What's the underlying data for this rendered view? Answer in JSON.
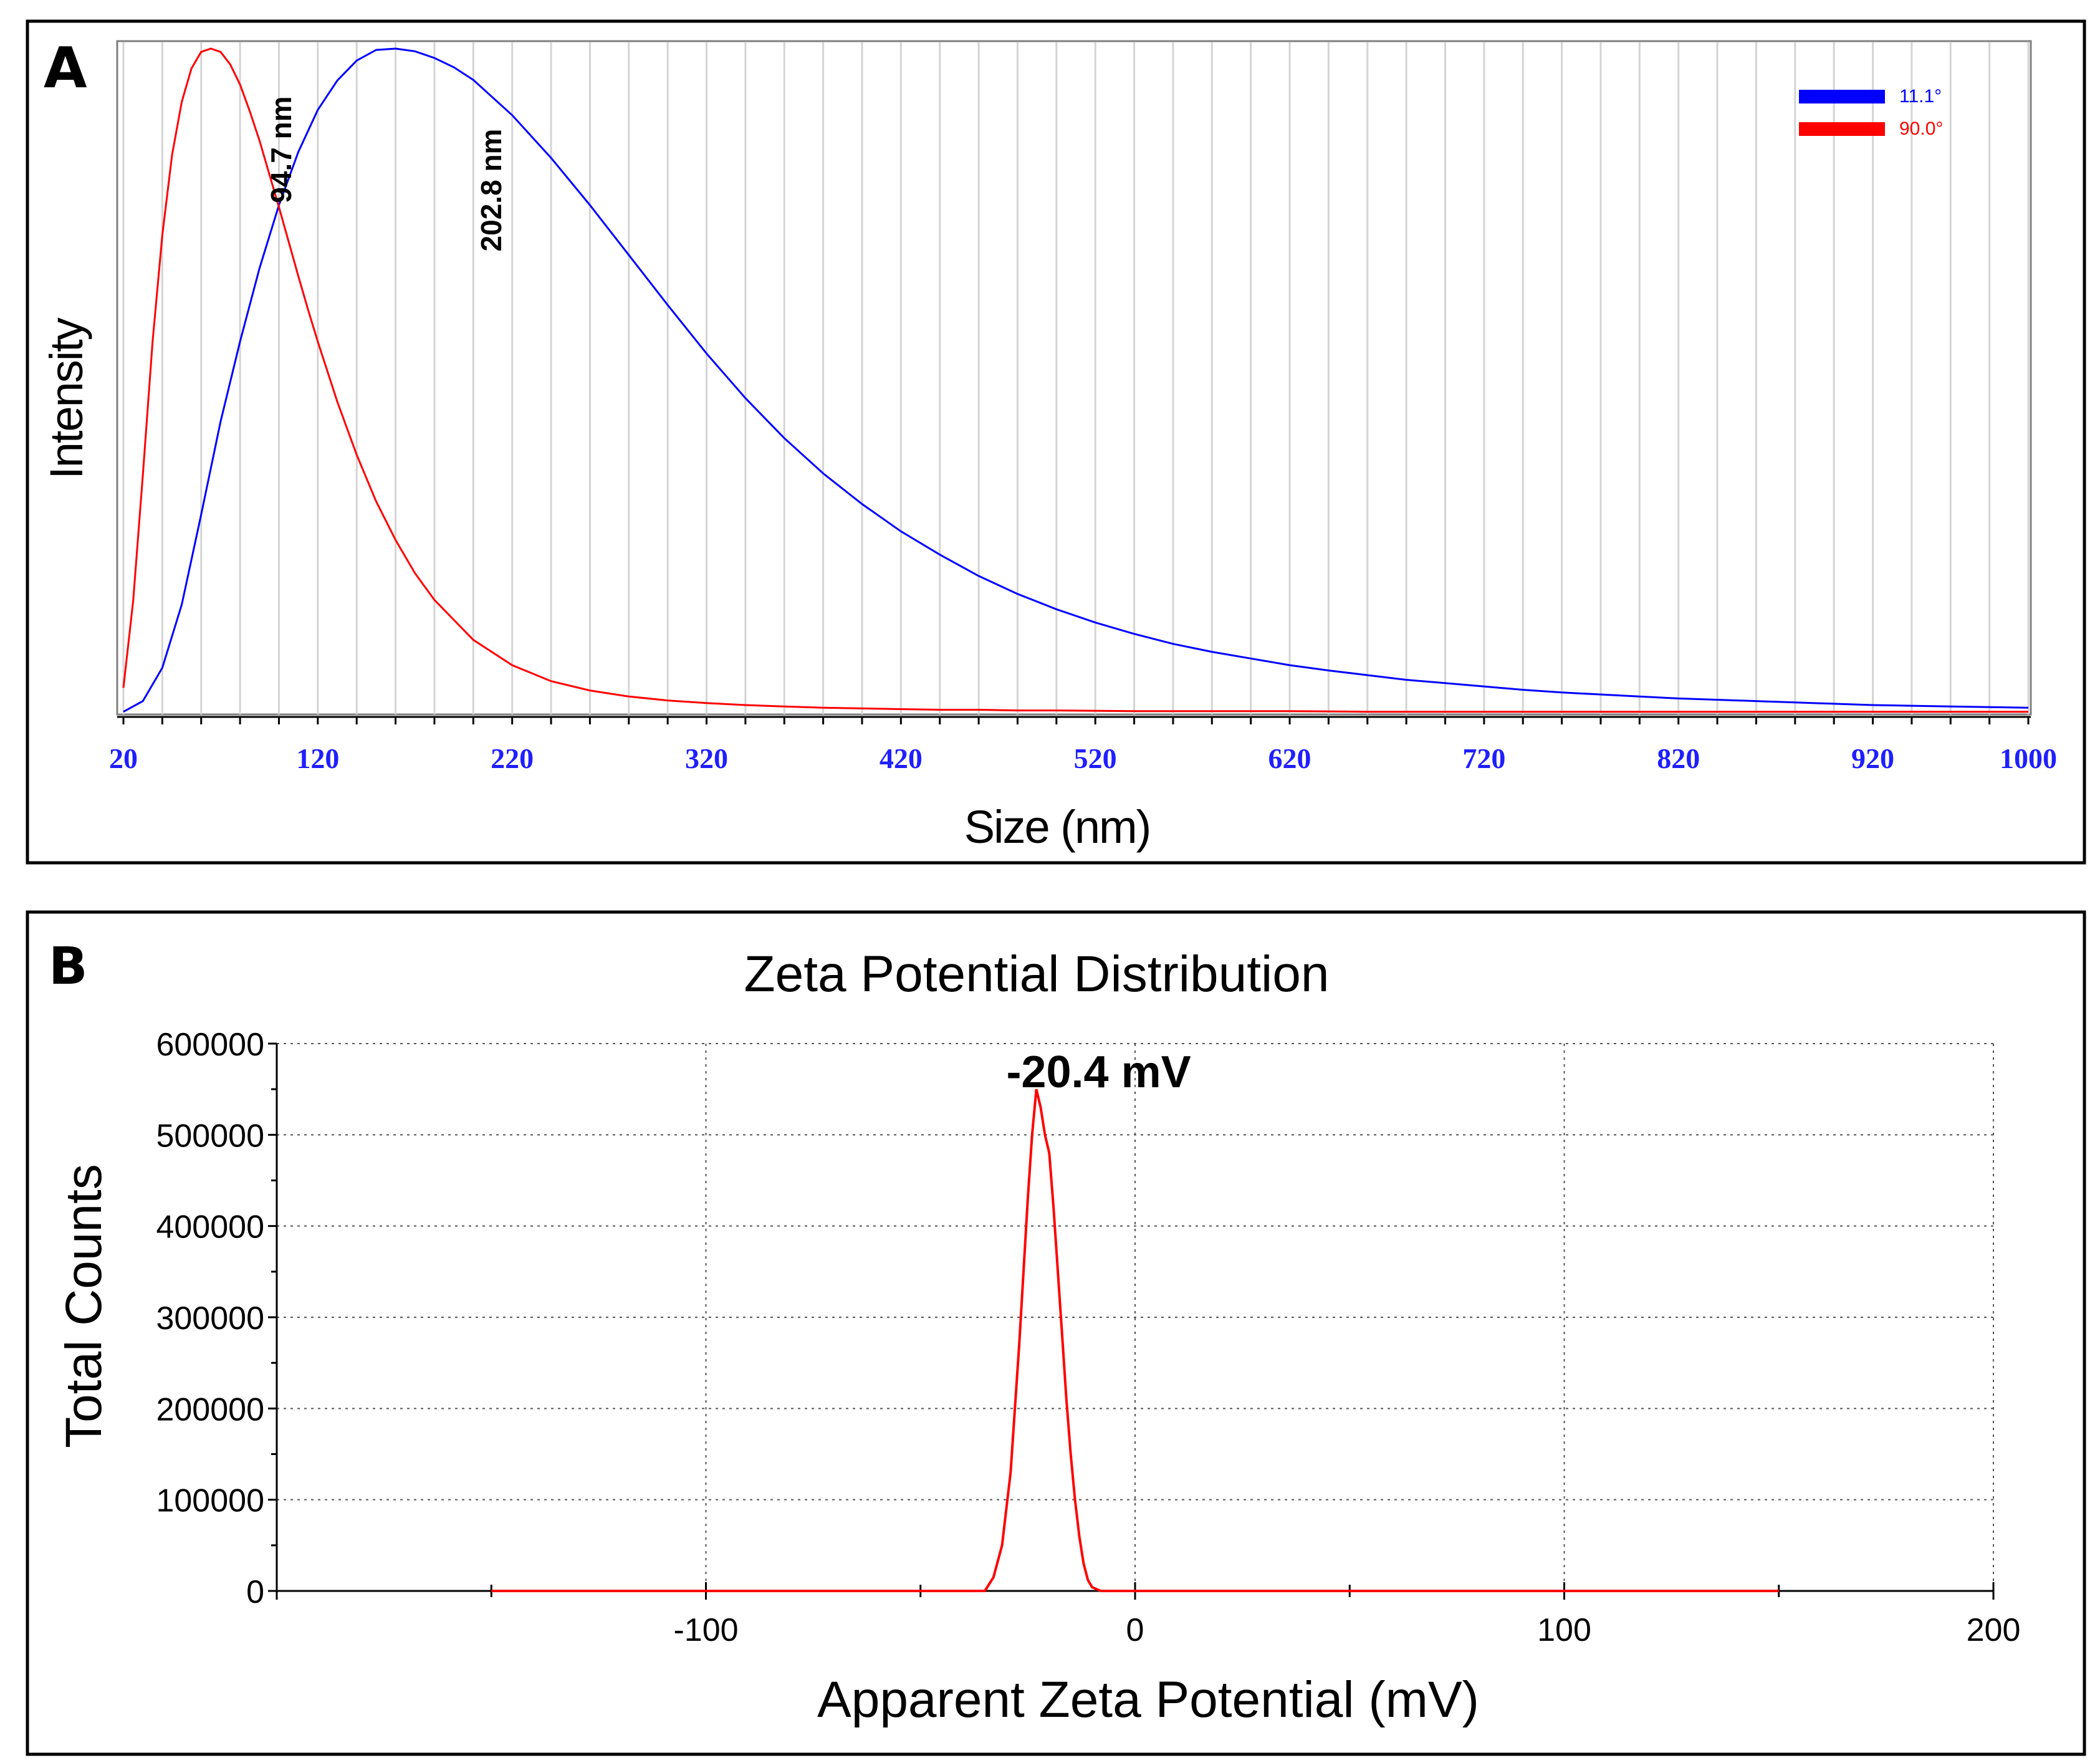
{
  "chart_data": [
    {
      "panel_label": "A",
      "type": "line",
      "title": "",
      "xlabel": "Size (nm)",
      "ylabel": "Intensity",
      "xlim": [
        20,
        1000
      ],
      "ylim": [
        0,
        1
      ],
      "x_ticks": [
        "20",
        "120",
        "220",
        "320",
        "420",
        "520",
        "620",
        "720",
        "820",
        "920",
        "1000"
      ],
      "x_tick_values": [
        20,
        120,
        220,
        320,
        420,
        520,
        620,
        720,
        820,
        920,
        1000
      ],
      "grid": "vertical",
      "legend_position": "top-right",
      "series": [
        {
          "name": "11.1°",
          "color": "#0000ff",
          "x": [
            20,
            30,
            40,
            50,
            60,
            70,
            80,
            90,
            100,
            110,
            120,
            130,
            140,
            150,
            160,
            170,
            180,
            190,
            200,
            220,
            240,
            260,
            280,
            300,
            320,
            340,
            360,
            380,
            400,
            420,
            440,
            460,
            480,
            500,
            520,
            540,
            560,
            580,
            600,
            620,
            640,
            660,
            680,
            700,
            720,
            740,
            760,
            780,
            800,
            820,
            840,
            860,
            880,
            900,
            920,
            940,
            960,
            980,
            1000
          ],
          "values": [
            0.004,
            0.02,
            0.07,
            0.165,
            0.3,
            0.44,
            0.56,
            0.67,
            0.765,
            0.845,
            0.908,
            0.952,
            0.982,
            0.998,
            1.0,
            0.996,
            0.986,
            0.972,
            0.953,
            0.9,
            0.836,
            0.765,
            0.69,
            0.615,
            0.542,
            0.475,
            0.415,
            0.362,
            0.316,
            0.275,
            0.24,
            0.208,
            0.181,
            0.158,
            0.138,
            0.121,
            0.106,
            0.094,
            0.084,
            0.074,
            0.066,
            0.059,
            0.052,
            0.047,
            0.042,
            0.037,
            0.033,
            0.03,
            0.027,
            0.024,
            0.022,
            0.02,
            0.018,
            0.016,
            0.014,
            0.013,
            0.012,
            0.011,
            0.01
          ]
        },
        {
          "name": "90.0°",
          "color": "#ff0000",
          "x": [
            20,
            25,
            30,
            35,
            40,
            45,
            50,
            55,
            60,
            65,
            70,
            75,
            80,
            85,
            90,
            95,
            100,
            105,
            110,
            115,
            120,
            130,
            140,
            150,
            160,
            170,
            180,
            200,
            220,
            240,
            260,
            280,
            300,
            320,
            340,
            360,
            380,
            400,
            420,
            440,
            460,
            480,
            500,
            540,
            580,
            620,
            660,
            700,
            740,
            780,
            820,
            860,
            900,
            950,
            1000
          ],
          "values": [
            0.04,
            0.17,
            0.36,
            0.56,
            0.72,
            0.84,
            0.92,
            0.97,
            0.995,
            1.0,
            0.995,
            0.976,
            0.946,
            0.906,
            0.862,
            0.812,
            0.762,
            0.71,
            0.658,
            0.608,
            0.56,
            0.47,
            0.39,
            0.32,
            0.262,
            0.212,
            0.172,
            0.112,
            0.074,
            0.05,
            0.036,
            0.027,
            0.021,
            0.017,
            0.014,
            0.012,
            0.01,
            0.009,
            0.008,
            0.007,
            0.007,
            0.006,
            0.006,
            0.005,
            0.005,
            0.005,
            0.004,
            0.004,
            0.004,
            0.004,
            0.004,
            0.004,
            0.004,
            0.004,
            0.004
          ]
        }
      ],
      "annotations": [
        {
          "text": "94.7 nm",
          "x": 94.7
        },
        {
          "text": "202.8 nm",
          "x": 202.8
        }
      ]
    },
    {
      "panel_label": "B",
      "type": "line",
      "title": "Zeta Potential Distribution",
      "xlabel": "Apparent Zeta Potential (mV)",
      "ylabel": "Total Counts",
      "xlim": [
        -200,
        200
      ],
      "ylim": [
        0,
        600000
      ],
      "x_ticks": [
        "-100",
        "0",
        "100",
        "200"
      ],
      "x_tick_values": [
        -100,
        0,
        100,
        200
      ],
      "y_ticks": [
        "0",
        "100000",
        "200000",
        "300000",
        "400000",
        "500000",
        "600000"
      ],
      "y_tick_values": [
        0,
        100000,
        200000,
        300000,
        400000,
        500000,
        600000
      ],
      "grid": "dotted",
      "series": [
        {
          "name": "Total Counts",
          "color": "#ff0000",
          "x": [
            -150,
            -37,
            -35,
            -33,
            -31,
            -29,
            -27,
            -25,
            -24,
            -23,
            -22,
            -21,
            -20,
            -19,
            -18,
            -17,
            -16,
            -15,
            -14,
            -13,
            -12,
            -11,
            -10,
            -8,
            -6,
            150
          ],
          "values": [
            0,
            0,
            0,
            15000,
            50000,
            130000,
            270000,
            430000,
            500000,
            550000,
            530000,
            500000,
            480000,
            420000,
            350000,
            280000,
            210000,
            150000,
            100000,
            60000,
            30000,
            12000,
            4000,
            0,
            0,
            0
          ]
        }
      ],
      "annotations": [
        {
          "text": "-20.4 mV",
          "x": -20.4
        }
      ]
    }
  ]
}
